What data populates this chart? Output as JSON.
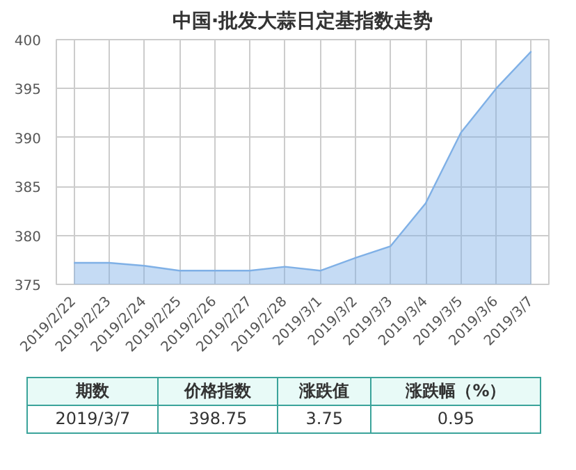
{
  "chart_data": {
    "type": "area",
    "title": "中国·批发大蒜日定基指数走势",
    "categories": [
      "2019/2/22",
      "2019/2/23",
      "2019/2/24",
      "2019/2/25",
      "2019/2/26",
      "2019/2/27",
      "2019/2/28",
      "2019/3/1",
      "2019/3/2",
      "2019/3/3",
      "2019/3/4",
      "2019/3/5",
      "2019/3/6",
      "2019/3/7"
    ],
    "series": [
      {
        "color": "#7fb0e6",
        "values": [
          377.2,
          377.2,
          376.9,
          376.4,
          376.4,
          376.4,
          376.8,
          376.4,
          377.7,
          378.9,
          383.3,
          390.5,
          395.0,
          398.8
        ]
      }
    ],
    "ylim": [
      375,
      400
    ],
    "yticks": [
      375,
      380,
      385,
      390,
      395,
      400
    ],
    "grid": true,
    "annotations": [
      "期数",
      "价格指数",
      "涨跌值",
      "涨跌幅（%）",
      "2019/3/7",
      "398.75",
      "3.75",
      "0.95"
    ]
  }
}
